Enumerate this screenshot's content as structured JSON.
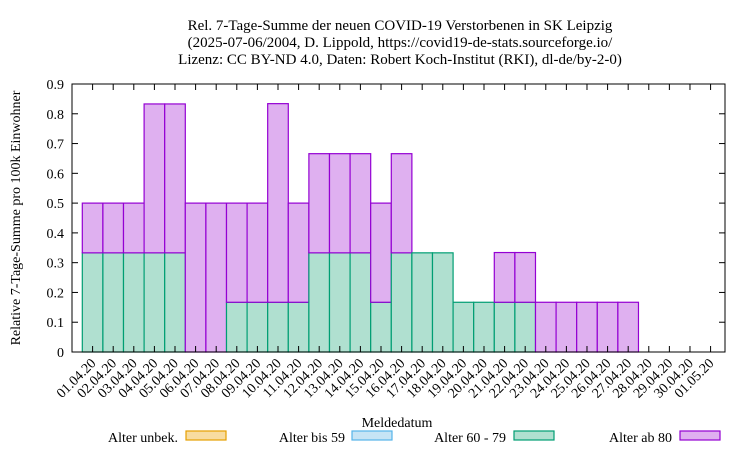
{
  "chart_data": {
    "type": "bar",
    "stacked": true,
    "title_lines": [
      "Rel. 7-Tage-Summe der neuen COVID-19 Verstorbenen in SK Leipzig",
      "(2025-07-06/2004, D. Lippold, https://covid19-de-stats.sourceforge.io/",
      "Lizenz: CC BY-ND 4.0, Daten: Robert Koch-Institut (RKI), dl-de/by-2-0)"
    ],
    "xlabel": "Meldedatum",
    "ylabel": "Relative 7-Tage-Summe pro 100k Einwohner",
    "ylim": [
      0,
      0.9
    ],
    "yticks": [
      "0",
      "0.1",
      "0.2",
      "0.3",
      "0.4",
      "0.5",
      "0.6",
      "0.7",
      "0.8",
      "0.9"
    ],
    "grid": false,
    "legend_position": "bottom",
    "categories": [
      "01.04.20",
      "02.04.20",
      "03.04.20",
      "04.04.20",
      "05.04.20",
      "06.04.20",
      "07.04.20",
      "08.04.20",
      "09.04.20",
      "10.04.20",
      "11.04.20",
      "12.04.20",
      "13.04.20",
      "14.04.20",
      "15.04.20",
      "16.04.20",
      "17.04.20",
      "18.04.20",
      "19.04.20",
      "20.04.20",
      "21.04.20",
      "22.04.20",
      "23.04.20",
      "24.04.20",
      "25.04.20",
      "26.04.20",
      "27.04.20",
      "28.04.20",
      "29.04.20",
      "30.04.20",
      "01.05.20"
    ],
    "series": [
      {
        "name": "Alter unbek.",
        "fill": "#f8dca0",
        "stroke": "#e69f00",
        "values": [
          0,
          0,
          0,
          0,
          0,
          0,
          0,
          0,
          0,
          0,
          0,
          0,
          0,
          0,
          0,
          0,
          0,
          0,
          0,
          0,
          0,
          0,
          0,
          0,
          0,
          0,
          0,
          0,
          0,
          0,
          0
        ]
      },
      {
        "name": "Alter bis 59",
        "fill": "#c6e4f5",
        "stroke": "#56b4e9",
        "values": [
          0,
          0,
          0,
          0,
          0,
          0,
          0,
          0,
          0,
          0,
          0,
          0,
          0,
          0,
          0,
          0,
          0,
          0,
          0,
          0,
          0,
          0,
          0,
          0,
          0,
          0,
          0,
          0,
          0,
          0,
          0
        ]
      },
      {
        "name": "Alter 60 - 79",
        "fill": "#b0e0d0",
        "stroke": "#009e73",
        "values": [
          0.333,
          0.333,
          0.333,
          0.333,
          0.333,
          0,
          0,
          0.167,
          0.167,
          0.167,
          0.167,
          0.333,
          0.333,
          0.333,
          0.167,
          0.333,
          0.333,
          0.333,
          0.167,
          0.167,
          0.167,
          0.167,
          0,
          0,
          0,
          0,
          0,
          0,
          0,
          0,
          0
        ]
      },
      {
        "name": "Alter ab 80",
        "fill": "#dfb0f0",
        "stroke": "#9400d3",
        "values": [
          0.167,
          0.167,
          0.167,
          0.5,
          0.5,
          0.5,
          0.5,
          0.333,
          0.333,
          0.667,
          0.333,
          0.333,
          0.333,
          0.333,
          0.333,
          0.333,
          0,
          0,
          0,
          0,
          0.167,
          0.167,
          0.167,
          0.167,
          0.167,
          0.167,
          0.167,
          0,
          0,
          0,
          0
        ]
      }
    ]
  }
}
